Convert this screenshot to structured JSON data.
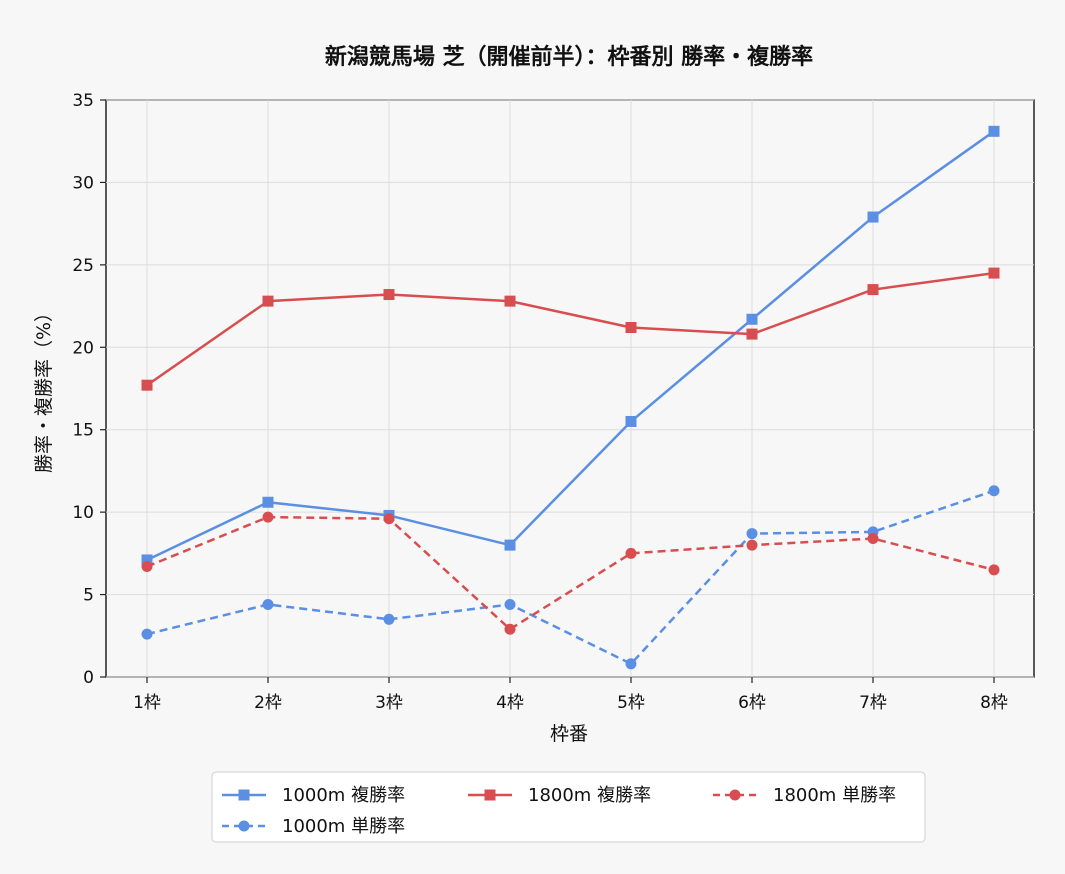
{
  "chart_data": {
    "type": "line",
    "title": "新潟競馬場 芝（開催前半）：枠番別 勝率・複勝率",
    "xlabel": "枠番",
    "ylabel": "勝率・複勝率（%）",
    "categories": [
      "1枠",
      "2枠",
      "3枠",
      "4枠",
      "5枠",
      "6枠",
      "7枠",
      "8枠"
    ],
    "ylim": [
      0,
      35
    ],
    "yticks": [
      "0",
      "5",
      "10",
      "15",
      "20",
      "25",
      "30",
      "35"
    ],
    "grid": true,
    "legend_position": "bottom",
    "series": [
      {
        "name": "1000m 複勝率",
        "color": "#5b8fe3",
        "dash": "solid",
        "marker": "square",
        "values": [
          7.1,
          10.6,
          9.8,
          8.0,
          15.5,
          21.7,
          27.9,
          33.1
        ]
      },
      {
        "name": "1000m 単勝率",
        "color": "#5b8fe3",
        "dash": "dashed",
        "marker": "circle",
        "values": [
          2.6,
          4.4,
          3.5,
          4.4,
          0.8,
          8.7,
          8.8,
          11.3
        ]
      },
      {
        "name": "1800m 複勝率",
        "color": "#d84e50",
        "dash": "solid",
        "marker": "square",
        "values": [
          17.7,
          22.8,
          23.2,
          22.8,
          21.2,
          20.8,
          23.5,
          24.5
        ]
      },
      {
        "name": "1800m 単勝率",
        "color": "#d84e50",
        "dash": "dashed",
        "marker": "circle",
        "values": [
          6.7,
          9.7,
          9.6,
          2.9,
          7.5,
          8.0,
          8.4,
          6.5
        ]
      }
    ]
  }
}
